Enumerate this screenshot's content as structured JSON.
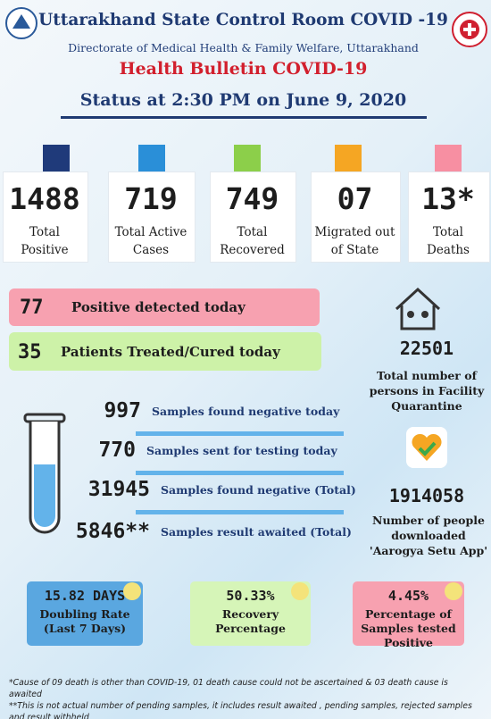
{
  "header": {
    "title": "Uttarakhand State Control Room COVID -19",
    "subtitle": "Directorate of Medical Health & Family Welfare, Uttarakhand",
    "bulletin": "Health Bulletin COVID-19",
    "status": "Status at 2:30 PM on June 9, 2020"
  },
  "stats": [
    {
      "value": "1488",
      "label": "Total Positive"
    },
    {
      "value": "719",
      "label": "Total Active Cases"
    },
    {
      "value": "749",
      "label": "Total Recovered"
    },
    {
      "value": "07",
      "label": "Migrated out of State"
    },
    {
      "value": "13*",
      "label": "Total Deaths"
    }
  ],
  "today": [
    {
      "value": "77",
      "label": "Positive detected today"
    },
    {
      "value": "35",
      "label": "Patients Treated/Cured today"
    }
  ],
  "quarantine": {
    "value": "22501",
    "label": "Total number of persons in Facility Quarantine"
  },
  "samples": [
    {
      "value": "997",
      "label": "Samples found negative today"
    },
    {
      "value": "770",
      "label": "Samples sent for testing today"
    },
    {
      "value": "31945",
      "label": "Samples found negative (Total)"
    },
    {
      "value": "5846**",
      "label": "Samples result awaited (Total)"
    }
  ],
  "aarogya": {
    "value": "1914058",
    "label": "Number of people downloaded 'Aarogya Setu App'"
  },
  "rates": [
    {
      "value": "15.82 DAYS",
      "label": "Doubling Rate (Last 7 Days)"
    },
    {
      "value": "50.33%",
      "label": "Recovery Percentage"
    },
    {
      "value": "4.45%",
      "label": "Percentage of Samples tested Positive"
    }
  ],
  "footnotes": [
    "*Cause of 09 death is other than COVID-19, 01 death cause could not be ascertained & 03 death cause is awaited",
    "**This is not actual number of pending samples, it includes result awaited , pending samples, rejected samples and result withheld"
  ]
}
